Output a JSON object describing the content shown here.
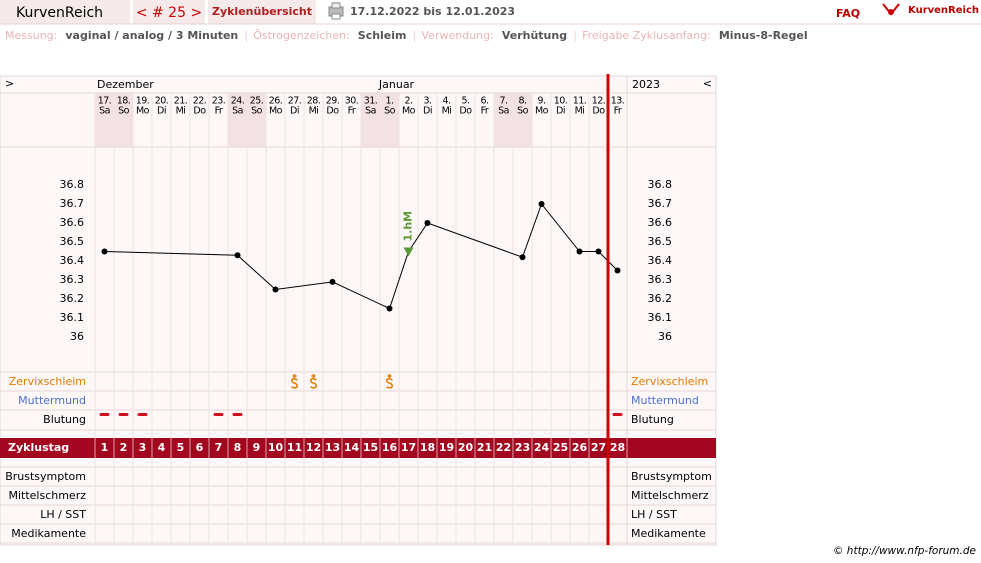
{
  "header": {
    "logo_left": "KurvenReich",
    "cycle_nav": "< # 25 >",
    "overview": "Zyklenübersicht",
    "date_range": "17.12.2022 bis 12.01.2023",
    "faq": "FAQ",
    "logo_right": "KurvenReich"
  },
  "info": [
    {
      "label": "Messung:",
      "value": "vaginal / analog / 3 Minuten"
    },
    {
      "label": "Östrogenzeichen:",
      "value": "Schleim"
    },
    {
      "label": "Verwendung:",
      "value": "Verhütung"
    },
    {
      "label": "Freigabe Zyklusanfang:",
      "value": "Minus-8-Regel"
    }
  ],
  "nav": {
    "left": ">",
    "right": "<"
  },
  "months": {
    "first": "Dezember",
    "second": "Januar",
    "year": "2023"
  },
  "days": {
    "dates": [
      "17.",
      "18.",
      "19.",
      "20.",
      "21.",
      "22.",
      "23.",
      "24.",
      "25.",
      "26.",
      "27.",
      "28.",
      "29.",
      "30.",
      "31.",
      "1.",
      "2.",
      "3.",
      "4.",
      "5.",
      "6.",
      "7.",
      "8.",
      "9.",
      "10.",
      "11.",
      "12.",
      "13."
    ],
    "weekdays": [
      "Sa",
      "So",
      "Mo",
      "Di",
      "Mi",
      "Do",
      "Fr",
      "Sa",
      "So",
      "Mo",
      "Di",
      "Mi",
      "Do",
      "Fr",
      "Sa",
      "So",
      "Mo",
      "Di",
      "Mi",
      "Do",
      "Fr",
      "Sa",
      "So",
      "Mo",
      "Di",
      "Mi",
      "Do",
      "Fr"
    ]
  },
  "chart": {
    "type": "line",
    "x": [
      1,
      8,
      10,
      13,
      16,
      17,
      18,
      23,
      24,
      26,
      27,
      28
    ],
    "values": [
      36.45,
      36.43,
      36.25,
      36.29,
      36.15,
      36.45,
      36.6,
      36.42,
      36.7,
      36.45,
      36.45,
      36.35
    ],
    "ylim": [
      36,
      36.8
    ],
    "yticks": [
      36.8,
      36.7,
      36.6,
      36.5,
      36.4,
      36.3,
      36.2,
      36.1,
      36
    ],
    "color": "#000000",
    "annotation": {
      "day": 17,
      "text": "1.hM",
      "color": "#5a9a3a"
    }
  },
  "rows": {
    "zervixschleim": "Zervixschleim",
    "muttermund": "Muttermund",
    "blutung": "Blutung",
    "zyklustag": "Zyklustag",
    "brustsymptom": "Brustsymptom",
    "mittelschmerz": "Mittelschmerz",
    "lh": "LH / SST",
    "medikamente": "Medikamente"
  },
  "zervix_days": [
    11,
    12,
    16
  ],
  "bleeding_days": [
    1,
    2,
    3,
    7,
    8,
    28
  ],
  "cycle_days": [
    1,
    2,
    3,
    4,
    5,
    6,
    7,
    8,
    9,
    10,
    11,
    12,
    13,
    14,
    15,
    16,
    17,
    18,
    19,
    20,
    21,
    22,
    23,
    24,
    25,
    26,
    27,
    28
  ],
  "footer": "© http://www.nfp-forum.de"
}
